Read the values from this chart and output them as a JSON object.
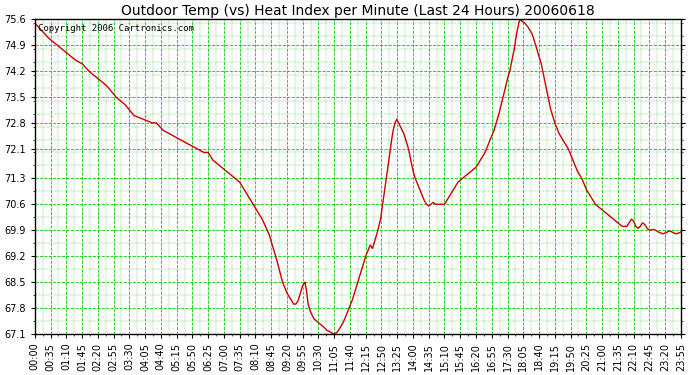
{
  "title": "Outdoor Temp (vs) Heat Index per Minute (Last 24 Hours) 20060618",
  "copyright": "Copyright 2006 Cartronics.com",
  "line_color": "#CC0000",
  "bg_color": "#FFFFFF",
  "plot_bg_color": "#FFFFFF",
  "grid_major_color": "#00CC00",
  "grid_minor_color": "#00AA00",
  "ylim": [
    67.1,
    75.6
  ],
  "yticks": [
    67.1,
    67.8,
    68.5,
    69.2,
    69.9,
    70.6,
    71.3,
    72.1,
    72.8,
    73.5,
    74.2,
    74.9,
    75.6
  ],
  "xtick_labels": [
    "00:00",
    "00:35",
    "01:10",
    "01:45",
    "02:20",
    "02:55",
    "03:30",
    "04:05",
    "04:40",
    "05:15",
    "05:50",
    "06:25",
    "07:00",
    "07:35",
    "08:10",
    "08:45",
    "09:20",
    "09:55",
    "10:30",
    "11:05",
    "11:40",
    "12:15",
    "12:50",
    "13:25",
    "14:00",
    "14:35",
    "15:10",
    "15:45",
    "16:20",
    "16:55",
    "17:30",
    "18:05",
    "18:40",
    "19:15",
    "19:50",
    "20:25",
    "21:00",
    "21:35",
    "22:10",
    "22:45",
    "23:20",
    "23:55"
  ],
  "curve_points": [
    [
      0,
      75.5
    ],
    [
      30,
      75.1
    ],
    [
      60,
      74.8
    ],
    [
      90,
      74.5
    ],
    [
      105,
      74.4
    ],
    [
      120,
      74.2
    ],
    [
      140,
      74.0
    ],
    [
      160,
      73.8
    ],
    [
      180,
      73.5
    ],
    [
      200,
      73.3
    ],
    [
      220,
      73.0
    ],
    [
      240,
      72.9
    ],
    [
      260,
      72.8
    ],
    [
      270,
      72.8
    ],
    [
      285,
      72.6
    ],
    [
      300,
      72.5
    ],
    [
      315,
      72.4
    ],
    [
      330,
      72.3
    ],
    [
      345,
      72.2
    ],
    [
      360,
      72.1
    ],
    [
      375,
      72.0
    ],
    [
      385,
      72.0
    ],
    [
      395,
      71.8
    ],
    [
      405,
      71.7
    ],
    [
      415,
      71.6
    ],
    [
      425,
      71.5
    ],
    [
      435,
      71.4
    ],
    [
      445,
      71.3
    ],
    [
      455,
      71.2
    ],
    [
      465,
      71.0
    ],
    [
      475,
      70.8
    ],
    [
      490,
      70.5
    ],
    [
      505,
      70.2
    ],
    [
      520,
      69.8
    ],
    [
      535,
      69.2
    ],
    [
      550,
      68.5
    ],
    [
      560,
      68.2
    ],
    [
      565,
      68.1
    ],
    [
      570,
      68.0
    ],
    [
      575,
      67.9
    ],
    [
      580,
      67.9
    ],
    [
      585,
      68.0
    ],
    [
      590,
      68.2
    ],
    [
      595,
      68.4
    ],
    [
      600,
      68.5
    ],
    [
      603,
      68.3
    ],
    [
      607,
      67.9
    ],
    [
      612,
      67.7
    ],
    [
      620,
      67.5
    ],
    [
      630,
      67.4
    ],
    [
      640,
      67.3
    ],
    [
      648,
      67.2
    ],
    [
      655,
      67.15
    ],
    [
      663,
      67.1
    ],
    [
      670,
      67.12
    ],
    [
      675,
      67.2
    ],
    [
      685,
      67.4
    ],
    [
      695,
      67.7
    ],
    [
      705,
      68.0
    ],
    [
      715,
      68.4
    ],
    [
      725,
      68.8
    ],
    [
      735,
      69.2
    ],
    [
      745,
      69.5
    ],
    [
      750,
      69.4
    ],
    [
      755,
      69.6
    ],
    [
      760,
      69.8
    ],
    [
      768,
      70.2
    ],
    [
      775,
      70.8
    ],
    [
      782,
      71.4
    ],
    [
      788,
      71.9
    ],
    [
      792,
      72.3
    ],
    [
      796,
      72.6
    ],
    [
      800,
      72.8
    ],
    [
      804,
      72.9
    ],
    [
      808,
      72.8
    ],
    [
      812,
      72.7
    ],
    [
      816,
      72.6
    ],
    [
      820,
      72.5
    ],
    [
      825,
      72.3
    ],
    [
      830,
      72.1
    ],
    [
      835,
      71.8
    ],
    [
      840,
      71.5
    ],
    [
      845,
      71.3
    ],
    [
      850,
      71.15
    ],
    [
      855,
      71.0
    ],
    [
      860,
      70.85
    ],
    [
      865,
      70.7
    ],
    [
      870,
      70.6
    ],
    [
      875,
      70.55
    ],
    [
      880,
      70.6
    ],
    [
      885,
      70.65
    ],
    [
      890,
      70.6
    ],
    [
      895,
      70.6
    ],
    [
      900,
      70.6
    ],
    [
      905,
      70.6
    ],
    [
      910,
      70.6
    ],
    [
      915,
      70.7
    ],
    [
      920,
      70.8
    ],
    [
      930,
      71.0
    ],
    [
      940,
      71.2
    ],
    [
      950,
      71.3
    ],
    [
      960,
      71.4
    ],
    [
      970,
      71.5
    ],
    [
      980,
      71.6
    ],
    [
      990,
      71.8
    ],
    [
      1000,
      72.0
    ],
    [
      1010,
      72.3
    ],
    [
      1020,
      72.6
    ],
    [
      1030,
      73.0
    ],
    [
      1040,
      73.5
    ],
    [
      1050,
      74.0
    ],
    [
      1055,
      74.2
    ],
    [
      1060,
      74.5
    ],
    [
      1065,
      74.8
    ],
    [
      1070,
      75.2
    ],
    [
      1075,
      75.5
    ],
    [
      1078,
      75.6
    ],
    [
      1082,
      75.55
    ],
    [
      1088,
      75.5
    ],
    [
      1095,
      75.4
    ],
    [
      1105,
      75.2
    ],
    [
      1115,
      74.8
    ],
    [
      1125,
      74.4
    ],
    [
      1135,
      73.8
    ],
    [
      1145,
      73.2
    ],
    [
      1155,
      72.8
    ],
    [
      1165,
      72.5
    ],
    [
      1175,
      72.3
    ],
    [
      1185,
      72.1
    ],
    [
      1195,
      71.8
    ],
    [
      1205,
      71.5
    ],
    [
      1215,
      71.3
    ],
    [
      1225,
      71.0
    ],
    [
      1235,
      70.8
    ],
    [
      1245,
      70.6
    ],
    [
      1255,
      70.5
    ],
    [
      1265,
      70.4
    ],
    [
      1275,
      70.3
    ],
    [
      1285,
      70.2
    ],
    [
      1295,
      70.1
    ],
    [
      1305,
      70.0
    ],
    [
      1315,
      70.0
    ],
    [
      1320,
      70.1
    ],
    [
      1325,
      70.2
    ],
    [
      1330,
      70.15
    ],
    [
      1335,
      70.0
    ],
    [
      1340,
      69.95
    ],
    [
      1345,
      70.0
    ],
    [
      1350,
      70.1
    ],
    [
      1355,
      70.05
    ],
    [
      1360,
      69.95
    ],
    [
      1365,
      69.9
    ],
    [
      1375,
      69.92
    ],
    [
      1385,
      69.85
    ],
    [
      1395,
      69.8
    ],
    [
      1400,
      69.82
    ],
    [
      1405,
      69.85
    ],
    [
      1410,
      69.88
    ],
    [
      1415,
      69.85
    ],
    [
      1420,
      69.82
    ],
    [
      1425,
      69.8
    ],
    [
      1430,
      69.82
    ],
    [
      1435,
      69.85
    ]
  ],
  "title_fontsize": 10,
  "tick_fontsize": 7,
  "copyright_fontsize": 6.5
}
